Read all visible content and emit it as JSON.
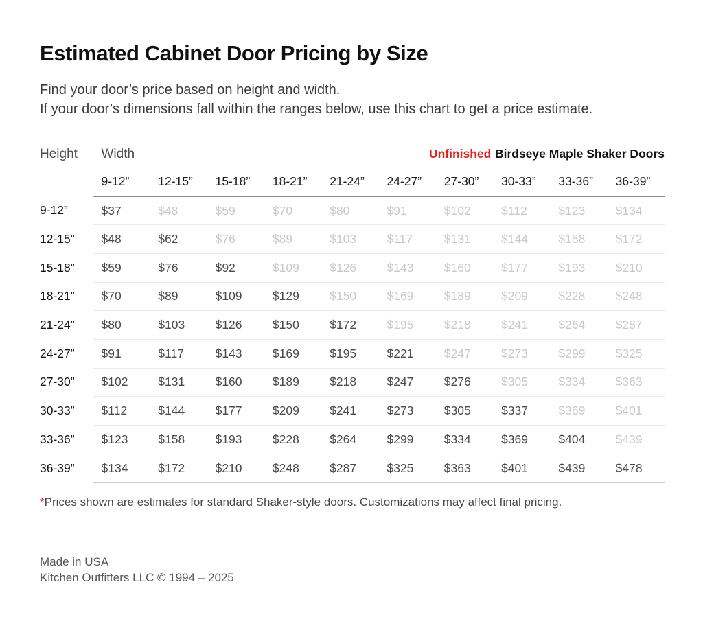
{
  "header": {
    "title": "Estimated Cabinet Door Pricing by Size",
    "subtitle_line1": "Find your door’s price based on height and width.",
    "subtitle_line2": "If your door’s dimensions fall within the ranges below, use this chart to get a price estimate."
  },
  "chart_data": {
    "type": "table",
    "title": "Estimated Cabinet Door Pricing by Size",
    "row_axis_label": "Height",
    "col_axis_label": "Width",
    "series_label_highlight": "Unfinished",
    "series_label_rest": "Birdseye Maple Shaker Doors",
    "currency": "$",
    "columns": [
      "9-12”",
      "12-15”",
      "15-18”",
      "18-21”",
      "21-24”",
      "24-27”",
      "27-30”",
      "30-33”",
      "33-36”",
      "36-39”"
    ],
    "rows": [
      "9-12”",
      "12-15”",
      "15-18”",
      "18-21”",
      "21-24”",
      "24-27”",
      "27-30”",
      "30-33”",
      "33-36”",
      "36-39”"
    ],
    "values": [
      [
        37,
        48,
        59,
        70,
        80,
        91,
        102,
        112,
        123,
        134
      ],
      [
        48,
        62,
        76,
        89,
        103,
        117,
        131,
        144,
        158,
        172
      ],
      [
        59,
        76,
        92,
        109,
        126,
        143,
        160,
        177,
        193,
        210
      ],
      [
        70,
        89,
        109,
        129,
        150,
        169,
        189,
        209,
        228,
        248
      ],
      [
        80,
        103,
        126,
        150,
        172,
        195,
        218,
        241,
        264,
        287
      ],
      [
        91,
        117,
        143,
        169,
        195,
        221,
        247,
        273,
        299,
        325
      ],
      [
        102,
        131,
        160,
        189,
        218,
        247,
        276,
        305,
        334,
        363
      ],
      [
        112,
        144,
        177,
        209,
        241,
        273,
        305,
        337,
        369,
        401
      ],
      [
        123,
        158,
        193,
        228,
        264,
        299,
        334,
        369,
        404,
        439
      ],
      [
        134,
        172,
        210,
        248,
        287,
        325,
        363,
        401,
        439,
        478
      ]
    ],
    "emphasis": "cells where column index <= row index (width range <= height range) are dark text; remaining upper-triangle cells are light gray",
    "legend_position": "top-right",
    "grid": "horizontal row separators only"
  },
  "footnote": {
    "asterisk": "*",
    "text": "Prices shown are estimates for standard Shaker-style doors. Customizations may affect final pricing."
  },
  "footer": {
    "line1": "Made in USA",
    "line2": "Kitchen Outfitters LLC © 1994 – 2025"
  },
  "colors": {
    "accent_red": "#e0231e",
    "dark_cell_text": "#4a4a4c",
    "light_cell_text": "#c9c9cd",
    "header_rule": "#8c8c90",
    "divider_line": "#8e8e93",
    "row_separator": "#e9e9eb"
  }
}
